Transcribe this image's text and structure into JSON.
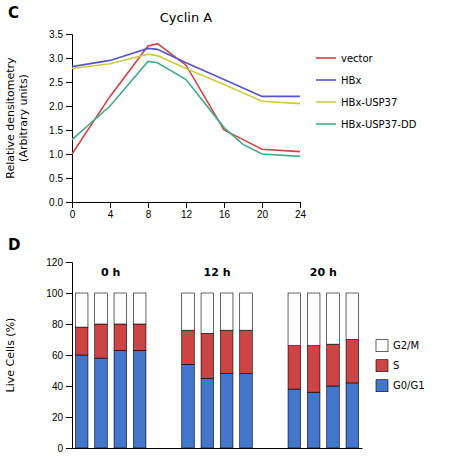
{
  "chart_data": [
    {
      "type": "line",
      "title": "Cyclin A",
      "annotations": [
        "C"
      ],
      "ylabel": "Relative densitometry\n(Arbitrary units)",
      "xlim": [
        0,
        24
      ],
      "xticks": [
        0,
        4,
        8,
        12,
        16,
        20,
        24
      ],
      "ylim": [
        0,
        3.5
      ],
      "yticks": [
        {
          "value": 0,
          "label": "0.0"
        },
        0.5,
        {
          "value": 1.0,
          "label": "1.0"
        },
        1.5,
        {
          "value": 2.0,
          "label": "2.0"
        },
        2.5,
        {
          "value": 3.0,
          "label": "3.0"
        },
        3.5
      ],
      "legend": "right",
      "series": [
        {
          "name": "vector",
          "color": "#cc4444",
          "x": [
            0,
            4,
            8,
            9,
            12,
            16,
            18,
            20,
            24
          ],
          "values": [
            1.0,
            2.2,
            3.25,
            3.3,
            2.85,
            1.5,
            1.3,
            1.1,
            1.05
          ]
        },
        {
          "name": "HBx",
          "color": "#5555cc",
          "x": [
            0,
            4,
            8,
            9,
            12,
            16,
            20,
            24
          ],
          "values": [
            2.82,
            2.95,
            3.2,
            3.18,
            2.9,
            2.55,
            2.2,
            2.2
          ]
        },
        {
          "name": "HBx-USP37",
          "color": "#cccc44",
          "x": [
            0,
            4,
            8,
            9,
            12,
            16,
            20,
            24
          ],
          "values": [
            2.78,
            2.88,
            3.08,
            3.05,
            2.78,
            2.45,
            2.1,
            2.05
          ]
        },
        {
          "name": "HBx-USP37-DD",
          "color": "#44aa88",
          "x": [
            0,
            4,
            8,
            9,
            12,
            16,
            18,
            20,
            24
          ],
          "values": [
            1.3,
            2.0,
            2.93,
            2.9,
            2.55,
            1.55,
            1.2,
            1.0,
            0.95
          ]
        }
      ]
    },
    {
      "type": "bar",
      "stacked": true,
      "annotations": [
        "D"
      ],
      "ylabel": "Live Cells (%)",
      "categories": [
        "0 h",
        null,
        null,
        null,
        "12 h",
        null,
        null,
        null,
        "20 h",
        null,
        null,
        null
      ],
      "ylim": [
        0,
        120
      ],
      "yticks": [
        0,
        20,
        40,
        60,
        80,
        100,
        120
      ],
      "legend": "right",
      "series": [
        {
          "name": "G0/G1",
          "color": "#4477cc",
          "values": [
            60,
            58,
            63,
            63,
            54,
            45,
            48,
            48,
            38,
            36,
            40,
            42
          ]
        },
        {
          "name": "S",
          "color": "#cc4444",
          "values": [
            18,
            22,
            17,
            17,
            22,
            29,
            28,
            28,
            28,
            30,
            27,
            28
          ]
        },
        {
          "name": "G2/M",
          "color": "#ffffff",
          "values": [
            22,
            20,
            20,
            20,
            24,
            26,
            24,
            24,
            34,
            34,
            33,
            30
          ]
        }
      ]
    }
  ]
}
